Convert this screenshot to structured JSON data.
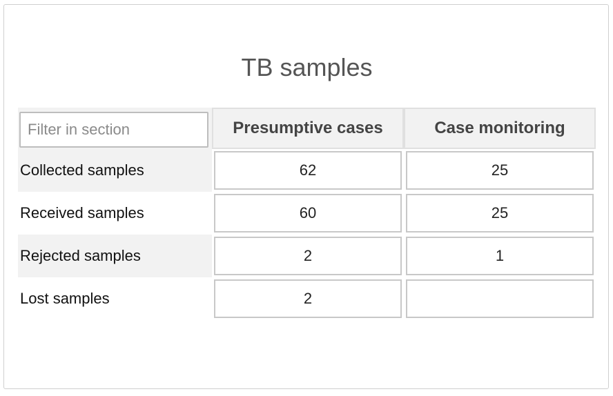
{
  "section": {
    "title": "TB samples",
    "filter_placeholder": "Filter in section"
  },
  "columns": [
    "Presumptive cases",
    "Case monitoring"
  ],
  "rows": [
    {
      "label": "Collected samples",
      "values": [
        "62",
        "25"
      ]
    },
    {
      "label": "Received samples",
      "values": [
        "60",
        "25"
      ]
    },
    {
      "label": "Rejected samples",
      "values": [
        "2",
        "1"
      ]
    },
    {
      "label": "Lost samples",
      "values": [
        "2",
        ""
      ]
    }
  ]
}
